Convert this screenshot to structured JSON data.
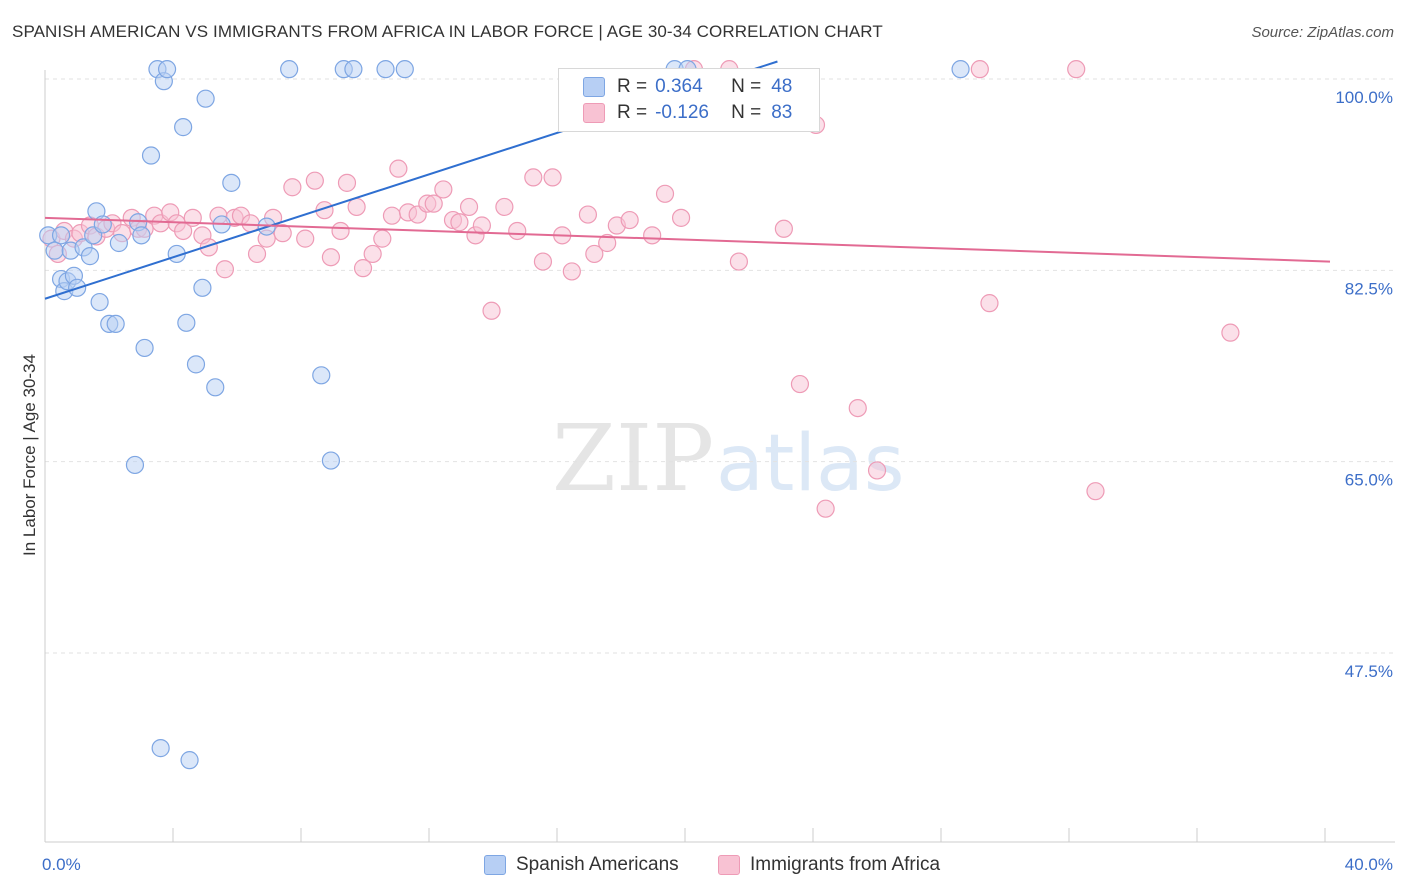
{
  "title": "SPANISH AMERICAN VS IMMIGRANTS FROM AFRICA IN LABOR FORCE | AGE 30-34 CORRELATION CHART",
  "source": "Source: ZipAtlas.com",
  "watermark": {
    "part1": "ZIP",
    "part2": "atlas"
  },
  "colors": {
    "blue_fill": "#b7cff4",
    "blue_stroke": "#7ea6e3",
    "blue_line": "#2f6fd0",
    "pink_fill": "#f8c2d3",
    "pink_stroke": "#ee9bb6",
    "pink_line": "#e26a93",
    "accent_text": "#3c6ec8"
  },
  "legend": {
    "rows": [
      {
        "r_label": "R =",
        "r_value": "0.364",
        "n_label": "N =",
        "n_value": "48"
      },
      {
        "r_label": "R =",
        "r_value": "-0.126",
        "n_label": "N =",
        "n_value": "83"
      }
    ]
  },
  "chart_data": {
    "type": "scatter",
    "title": "SPANISH AMERICAN VS IMMIGRANTS FROM AFRICA IN LABOR FORCE | AGE 30-34 CORRELATION CHART",
    "xlabel": "",
    "ylabel": "In Labor Force | Age 30-34",
    "xlim": [
      0,
      40
    ],
    "ylim": [
      36,
      102
    ],
    "x_tick_labels": [
      "0.0%",
      "40.0%"
    ],
    "x_tick_values": [
      0,
      40
    ],
    "y_tick_labels": [
      "100.0%",
      "82.5%",
      "65.0%",
      "47.5%"
    ],
    "y_tick_values": [
      100,
      82.5,
      65,
      47.5
    ],
    "grid": true,
    "legend_position": "top-center",
    "series": [
      {
        "name": "Spanish Americans",
        "r": 0.364,
        "n": 48,
        "trend": {
          "x": [
            0,
            22.8
          ],
          "y": [
            79.9,
            101.6
          ]
        },
        "points": [
          [
            0.1,
            85.7
          ],
          [
            0.3,
            84.3
          ],
          [
            0.5,
            85.7
          ],
          [
            0.5,
            81.7
          ],
          [
            0.6,
            80.6
          ],
          [
            0.7,
            81.5
          ],
          [
            0.8,
            84.3
          ],
          [
            0.9,
            82.0
          ],
          [
            1.0,
            80.9
          ],
          [
            1.2,
            84.6
          ],
          [
            1.4,
            83.8
          ],
          [
            1.5,
            85.7
          ],
          [
            1.6,
            87.9
          ],
          [
            1.7,
            79.6
          ],
          [
            1.8,
            86.7
          ],
          [
            2.0,
            77.6
          ],
          [
            2.2,
            77.6
          ],
          [
            2.3,
            85.0
          ],
          [
            2.8,
            64.7
          ],
          [
            3.1,
            75.4
          ],
          [
            2.9,
            86.9
          ],
          [
            3.0,
            85.7
          ],
          [
            3.3,
            93.0
          ],
          [
            3.5,
            100.9
          ],
          [
            3.7,
            99.8
          ],
          [
            3.8,
            100.9
          ],
          [
            3.6,
            38.8
          ],
          [
            4.1,
            84.0
          ],
          [
            4.3,
            95.6
          ],
          [
            4.4,
            77.7
          ],
          [
            4.5,
            37.7
          ],
          [
            4.7,
            73.9
          ],
          [
            4.9,
            80.9
          ],
          [
            5.0,
            98.2
          ],
          [
            5.3,
            71.8
          ],
          [
            5.5,
            86.7
          ],
          [
            5.8,
            90.5
          ],
          [
            6.9,
            86.5
          ],
          [
            7.6,
            100.9
          ],
          [
            8.6,
            72.9
          ],
          [
            8.9,
            65.1
          ],
          [
            9.3,
            100.9
          ],
          [
            9.6,
            100.9
          ],
          [
            10.6,
            100.9
          ],
          [
            11.2,
            100.9
          ],
          [
            19.6,
            100.9
          ],
          [
            20.0,
            100.9
          ],
          [
            28.5,
            100.9
          ]
        ]
      },
      {
        "name": "Immigrants from Africa",
        "r": -0.126,
        "n": 83,
        "trend": {
          "x": [
            0,
            40
          ],
          "y": [
            87.3,
            83.3
          ]
        },
        "points": [
          [
            0.2,
            85.4
          ],
          [
            0.4,
            84.0
          ],
          [
            0.6,
            86.1
          ],
          [
            0.9,
            85.4
          ],
          [
            1.1,
            85.9
          ],
          [
            1.4,
            86.6
          ],
          [
            1.6,
            85.6
          ],
          [
            1.9,
            86.3
          ],
          [
            2.1,
            86.8
          ],
          [
            2.4,
            85.9
          ],
          [
            2.7,
            87.3
          ],
          [
            2.9,
            86.3
          ],
          [
            3.1,
            86.3
          ],
          [
            3.4,
            87.5
          ],
          [
            3.6,
            86.8
          ],
          [
            3.9,
            87.8
          ],
          [
            4.1,
            86.8
          ],
          [
            4.3,
            86.1
          ],
          [
            4.6,
            87.3
          ],
          [
            4.9,
            85.7
          ],
          [
            5.1,
            84.6
          ],
          [
            5.4,
            87.5
          ],
          [
            5.6,
            82.6
          ],
          [
            5.9,
            87.3
          ],
          [
            6.1,
            87.5
          ],
          [
            6.4,
            86.8
          ],
          [
            6.6,
            84.0
          ],
          [
            6.9,
            85.4
          ],
          [
            7.1,
            87.3
          ],
          [
            7.4,
            85.9
          ],
          [
            7.7,
            90.1
          ],
          [
            8.1,
            85.4
          ],
          [
            8.4,
            90.7
          ],
          [
            8.7,
            88.0
          ],
          [
            8.9,
            83.7
          ],
          [
            9.2,
            86.1
          ],
          [
            9.4,
            90.5
          ],
          [
            9.7,
            88.3
          ],
          [
            9.9,
            82.7
          ],
          [
            10.2,
            84.0
          ],
          [
            10.5,
            85.4
          ],
          [
            10.8,
            87.5
          ],
          [
            11.0,
            91.8
          ],
          [
            11.3,
            87.8
          ],
          [
            11.6,
            87.6
          ],
          [
            11.9,
            88.6
          ],
          [
            12.1,
            88.6
          ],
          [
            12.4,
            89.9
          ],
          [
            12.7,
            87.1
          ],
          [
            12.9,
            86.9
          ],
          [
            13.2,
            88.3
          ],
          [
            13.4,
            85.7
          ],
          [
            13.6,
            86.6
          ],
          [
            13.9,
            78.8
          ],
          [
            14.3,
            88.3
          ],
          [
            14.7,
            86.1
          ],
          [
            15.2,
            91.0
          ],
          [
            15.5,
            83.3
          ],
          [
            15.8,
            91.0
          ],
          [
            16.1,
            85.7
          ],
          [
            16.4,
            82.4
          ],
          [
            16.9,
            87.6
          ],
          [
            17.1,
            84.0
          ],
          [
            17.5,
            85.0
          ],
          [
            17.8,
            86.6
          ],
          [
            18.2,
            87.1
          ],
          [
            18.9,
            85.7
          ],
          [
            19.3,
            89.5
          ],
          [
            19.8,
            87.3
          ],
          [
            20.2,
            100.9
          ],
          [
            21.3,
            100.9
          ],
          [
            21.6,
            83.3
          ],
          [
            23.0,
            86.3
          ],
          [
            23.5,
            72.1
          ],
          [
            24.0,
            95.8
          ],
          [
            24.3,
            60.7
          ],
          [
            25.3,
            69.9
          ],
          [
            25.9,
            64.2
          ],
          [
            29.1,
            100.9
          ],
          [
            29.4,
            79.5
          ],
          [
            32.1,
            100.9
          ],
          [
            32.7,
            62.3
          ],
          [
            36.9,
            76.8
          ]
        ]
      }
    ]
  }
}
